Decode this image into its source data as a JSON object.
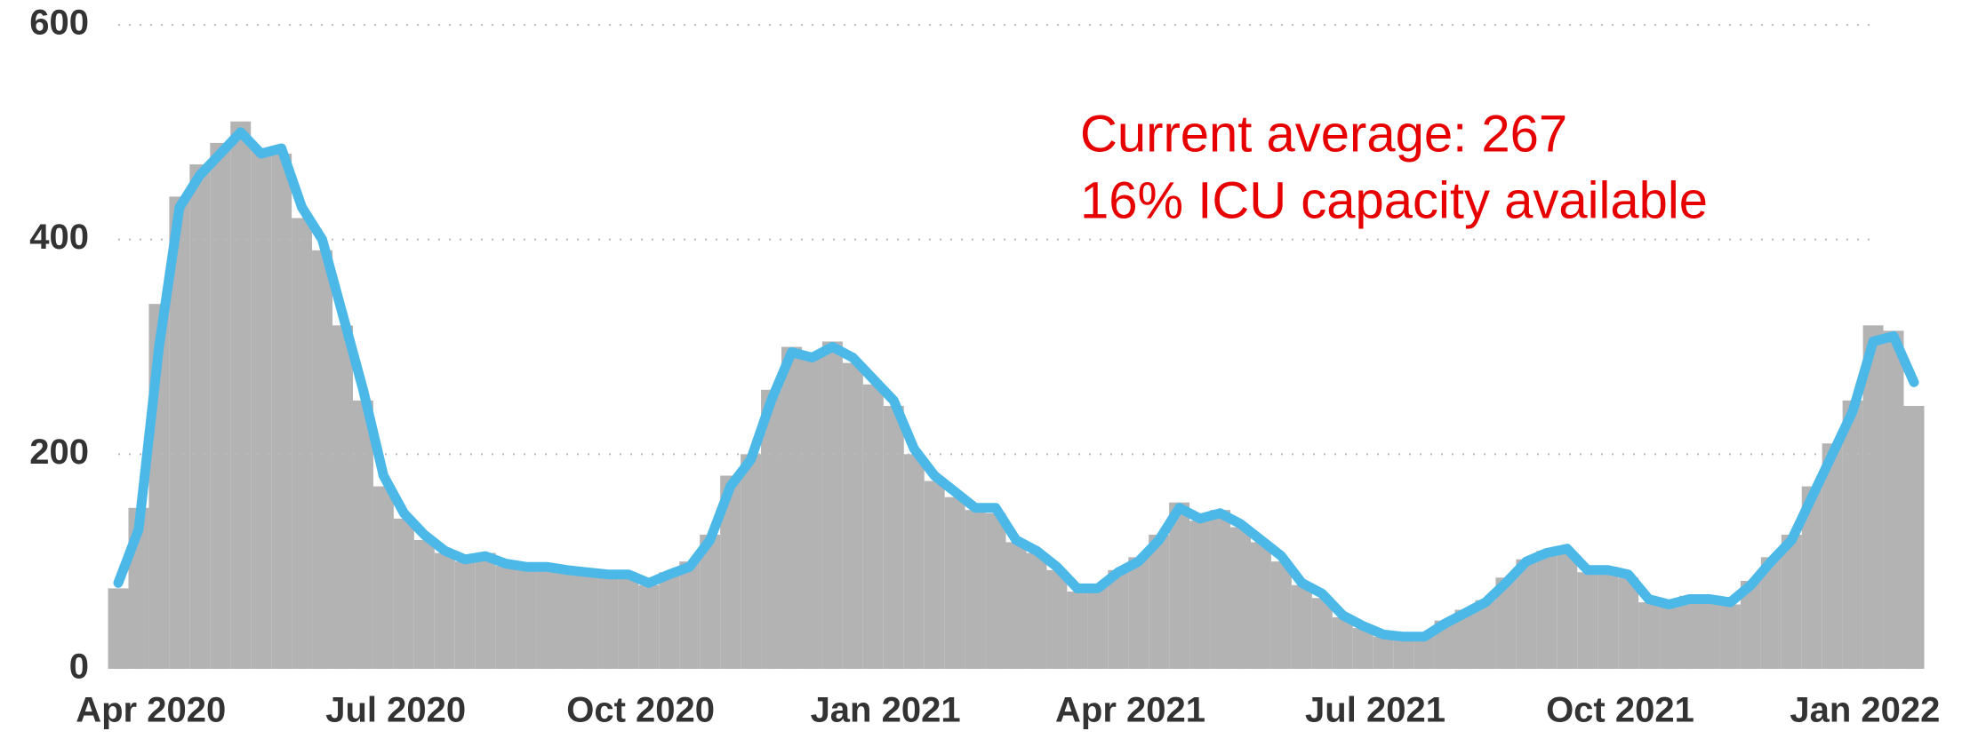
{
  "chart_data": {
    "type": "combo",
    "annotations": [
      "Current average: 267",
      "16% ICU capacity available"
    ],
    "x": [
      -0.4,
      -0.15,
      0.1,
      0.35,
      0.6,
      0.85,
      1.1,
      1.35,
      1.6,
      1.85,
      2.1,
      2.35,
      2.6,
      2.85,
      3.1,
      3.35,
      3.6,
      3.85,
      4.1,
      4.35,
      4.6,
      4.85,
      5.1,
      5.35,
      5.6,
      5.85,
      6.1,
      6.35,
      6.6,
      6.85,
      7.1,
      7.35,
      7.6,
      7.85,
      8.1,
      8.35,
      8.6,
      8.85,
      9.1,
      9.35,
      9.6,
      9.85,
      10.1,
      10.35,
      10.6,
      10.85,
      11.1,
      11.35,
      11.6,
      11.85,
      12.1,
      12.35,
      12.6,
      12.85,
      13.1,
      13.35,
      13.6,
      13.85,
      14.1,
      14.35,
      14.6,
      14.85,
      15.1,
      15.35,
      15.6,
      15.85,
      16.1,
      16.35,
      16.6,
      16.85,
      17.1,
      17.35,
      17.6,
      17.85,
      18.1,
      18.35,
      18.6,
      18.85,
      19.1,
      19.35,
      19.6,
      19.85,
      20.1,
      20.35,
      20.6,
      20.85,
      21.1,
      21.35,
      21.6
    ],
    "series": [
      {
        "type": "bar",
        "color": "#b3b3b3",
        "values": [
          75,
          150,
          340,
          440,
          470,
          490,
          510,
          485,
          480,
          420,
          390,
          320,
          250,
          170,
          140,
          120,
          108,
          100,
          108,
          96,
          98,
          92,
          90,
          88,
          90,
          86,
          78,
          90,
          100,
          125,
          180,
          200,
          260,
          300,
          295,
          305,
          285,
          265,
          245,
          200,
          175,
          160,
          148,
          145,
          118,
          108,
          92,
          72,
          78,
          92,
          104,
          125,
          155,
          138,
          148,
          132,
          118,
          100,
          78,
          66,
          48,
          38,
          30,
          28,
          32,
          45,
          55,
          64,
          85,
          102,
          110,
          108,
          90,
          95,
          85,
          62,
          58,
          68,
          62,
          60,
          82,
          104,
          125,
          170,
          210,
          250,
          320,
          315,
          245
        ]
      },
      {
        "type": "line",
        "color": "#4cb8e8",
        "values": [
          80,
          130,
          300,
          430,
          460,
          480,
          500,
          480,
          485,
          430,
          400,
          330,
          260,
          180,
          145,
          125,
          110,
          102,
          105,
          98,
          95,
          95,
          92,
          90,
          88,
          88,
          80,
          88,
          95,
          120,
          170,
          195,
          250,
          295,
          290,
          300,
          290,
          270,
          250,
          205,
          180,
          165,
          150,
          150,
          120,
          110,
          95,
          75,
          75,
          90,
          100,
          120,
          150,
          140,
          145,
          135,
          120,
          105,
          80,
          70,
          50,
          40,
          32,
          30,
          30,
          42,
          52,
          62,
          80,
          100,
          108,
          112,
          92,
          92,
          88,
          65,
          60,
          65,
          65,
          62,
          78,
          100,
          120,
          160,
          200,
          240,
          305,
          310,
          267
        ]
      }
    ],
    "xlim": [
      -0.4,
      21.6
    ],
    "xticks": [
      {
        "value": 0,
        "label": "Apr 2020"
      },
      {
        "value": 3,
        "label": "Jul 2020"
      },
      {
        "value": 6,
        "label": "Oct 2020"
      },
      {
        "value": 9,
        "label": "Jan 2021"
      },
      {
        "value": 12,
        "label": "Apr 2021"
      },
      {
        "value": 15,
        "label": "Jul 2021"
      },
      {
        "value": 18,
        "label": "Oct 2021"
      },
      {
        "value": 21,
        "label": "Jan 2022"
      }
    ],
    "ylim": [
      0,
      600
    ],
    "yticks": [
      0,
      200,
      400,
      600
    ],
    "grid": true
  }
}
